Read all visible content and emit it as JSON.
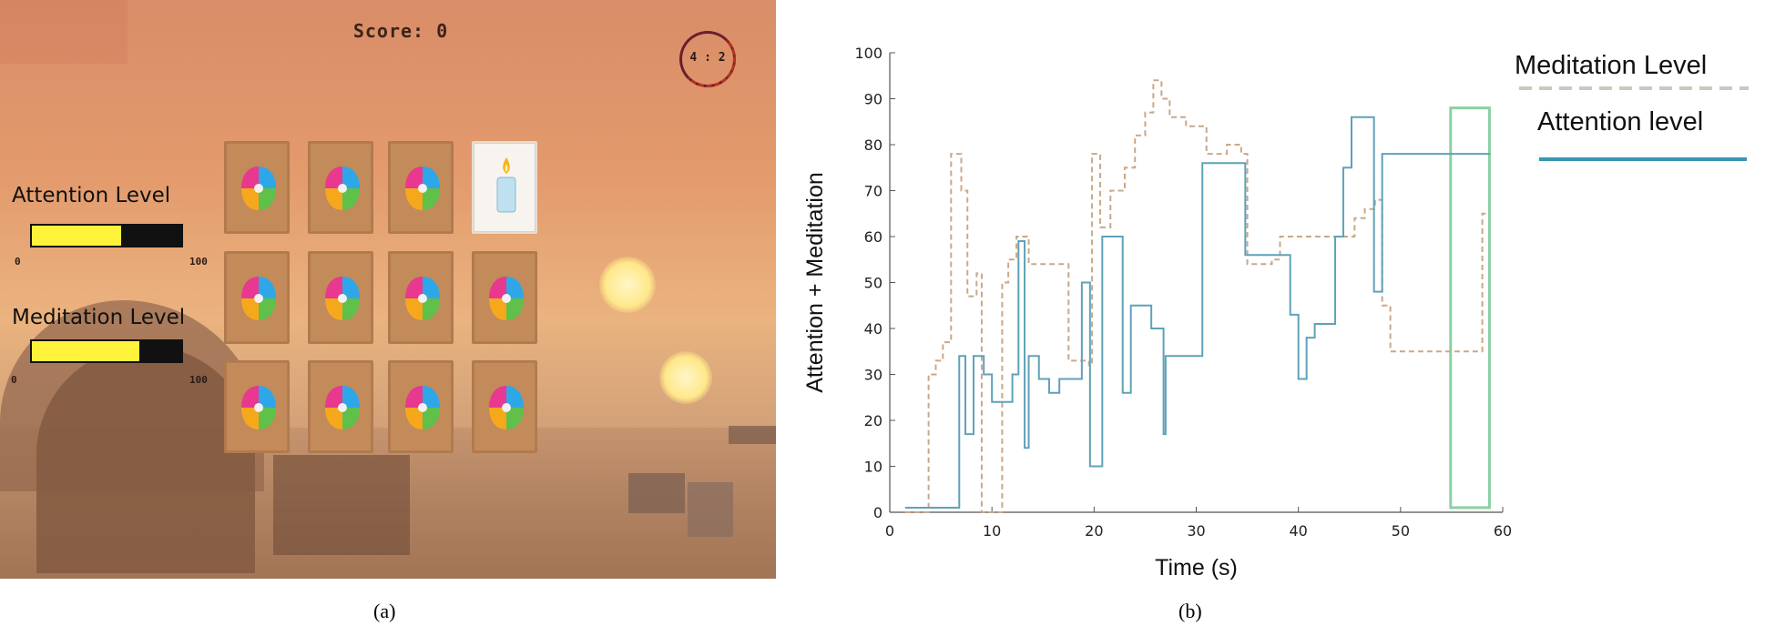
{
  "panel_a": {
    "caption": "(a)",
    "score_text": "Score: 0",
    "timer_text": "4 : 2",
    "attention": {
      "label": "Attention Level",
      "level_percent": 60,
      "min_label": "0",
      "max_label": "100"
    },
    "meditation": {
      "label": "Meditation Level",
      "level_percent": 72,
      "min_label": "0",
      "max_label": "100"
    },
    "cards": [
      {
        "row": 0,
        "col": 0,
        "icon": "brain-puzzle-icon"
      },
      {
        "row": 0,
        "col": 1,
        "icon": "brain-puzzle-icon"
      },
      {
        "row": 0,
        "col": 2,
        "icon": "brain-puzzle-icon"
      },
      {
        "row": 0,
        "col": 3,
        "icon": "candle-icon"
      },
      {
        "row": 1,
        "col": 0,
        "icon": "brain-puzzle-icon"
      },
      {
        "row": 1,
        "col": 1,
        "icon": "brain-puzzle-icon"
      },
      {
        "row": 1,
        "col": 2,
        "icon": "brain-puzzle-icon"
      },
      {
        "row": 1,
        "col": 3,
        "icon": "brain-puzzle-icon"
      },
      {
        "row": 2,
        "col": 0,
        "icon": "brain-puzzle-icon"
      },
      {
        "row": 2,
        "col": 1,
        "icon": "brain-puzzle-icon"
      },
      {
        "row": 2,
        "col": 2,
        "icon": "brain-puzzle-icon"
      },
      {
        "row": 2,
        "col": 3,
        "icon": "brain-puzzle-icon"
      }
    ],
    "colors": {
      "meter_fill": "#fff23a",
      "meter_track": "#111111",
      "card_back": "#c38a5a"
    }
  },
  "panel_b": {
    "caption": "(b)"
  },
  "chart_data": {
    "type": "line",
    "title": "",
    "xlabel": "Time (s)",
    "ylabel": "Attention + Meditation",
    "xlim": [
      0,
      60
    ],
    "ylim": [
      0,
      100
    ],
    "x_ticks": [
      0,
      10,
      20,
      30,
      40,
      50,
      60
    ],
    "y_ticks": [
      0,
      10,
      20,
      30,
      40,
      50,
      60,
      70,
      80,
      90,
      100
    ],
    "grid": false,
    "legend_position": "top-right",
    "series": [
      {
        "name": "Meditation Level",
        "style": "dashed",
        "color": "#c9a88a",
        "step": true,
        "points": [
          [
            1.5,
            0
          ],
          [
            3.2,
            0
          ],
          [
            3.8,
            30
          ],
          [
            4.5,
            33
          ],
          [
            5.2,
            37
          ],
          [
            6.0,
            78
          ],
          [
            7.0,
            70
          ],
          [
            7.6,
            47
          ],
          [
            8.5,
            52
          ],
          [
            9.0,
            0
          ],
          [
            10.5,
            0
          ],
          [
            11.0,
            50
          ],
          [
            11.6,
            55
          ],
          [
            12.4,
            60
          ],
          [
            13.6,
            54
          ],
          [
            17.5,
            33
          ],
          [
            19.5,
            32
          ],
          [
            19.8,
            78
          ],
          [
            20.6,
            62
          ],
          [
            21.6,
            70
          ],
          [
            23.0,
            75
          ],
          [
            24.0,
            82
          ],
          [
            25.0,
            87
          ],
          [
            25.8,
            94
          ],
          [
            26.6,
            90
          ],
          [
            27.4,
            86
          ],
          [
            29.0,
            84
          ],
          [
            31.0,
            78
          ],
          [
            33.0,
            80
          ],
          [
            34.4,
            78
          ],
          [
            35.0,
            54
          ],
          [
            37.4,
            55
          ],
          [
            38.2,
            60
          ],
          [
            45.5,
            64
          ],
          [
            46.5,
            66
          ],
          [
            47.5,
            68
          ],
          [
            48.2,
            45
          ],
          [
            49.0,
            35
          ],
          [
            57.2,
            35
          ],
          [
            58.0,
            65
          ],
          [
            58.6,
            65
          ]
        ]
      },
      {
        "name": "Attention level",
        "style": "solid",
        "color": "#5fa2b8",
        "step": true,
        "points": [
          [
            1.5,
            1
          ],
          [
            3.0,
            1
          ],
          [
            6.8,
            34
          ],
          [
            7.4,
            17
          ],
          [
            8.2,
            34
          ],
          [
            9.2,
            30
          ],
          [
            10.0,
            24
          ],
          [
            12.0,
            30
          ],
          [
            12.6,
            59
          ],
          [
            13.2,
            14
          ],
          [
            13.6,
            34
          ],
          [
            14.6,
            29
          ],
          [
            15.6,
            26
          ],
          [
            16.6,
            29
          ],
          [
            18.8,
            50
          ],
          [
            19.6,
            10
          ],
          [
            20.8,
            60
          ],
          [
            22.8,
            26
          ],
          [
            23.6,
            45
          ],
          [
            25.6,
            40
          ],
          [
            26.8,
            17
          ],
          [
            27.0,
            34
          ],
          [
            30.6,
            76
          ],
          [
            34.8,
            56
          ],
          [
            39.2,
            43
          ],
          [
            40.0,
            29
          ],
          [
            40.8,
            38
          ],
          [
            41.6,
            41
          ],
          [
            43.6,
            60
          ],
          [
            44.4,
            75
          ],
          [
            45.2,
            86
          ],
          [
            47.4,
            48
          ],
          [
            48.2,
            78
          ],
          [
            58.8,
            78
          ]
        ]
      }
    ],
    "annotations": [
      {
        "type": "rectangle",
        "x_range": [
          54.9,
          58.7
        ],
        "y_range": [
          1,
          88
        ],
        "color": "#8cd0a3"
      }
    ]
  }
}
